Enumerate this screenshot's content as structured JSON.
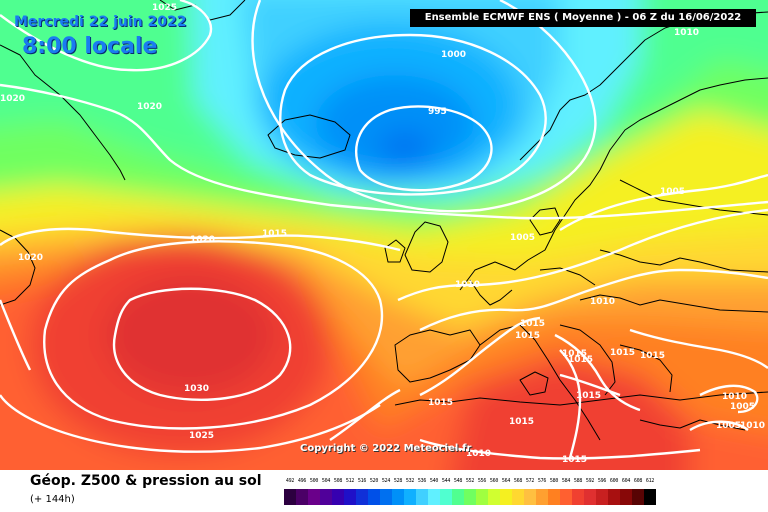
{
  "header": {
    "date": "Mercredi 22 juin 2022",
    "time": "8:00 locale",
    "model": "Ensemble ECMWF ENS  ( Moyenne )  -  06 Z du 16/06/2022"
  },
  "copyright": "Copyright © 2022 Meteociel.fr",
  "footer": {
    "title": "Géop. Z500 & pression au sol",
    "subtitle": "(+ 144h)"
  },
  "legend": {
    "values": [
      "492",
      "496",
      "500",
      "504",
      "508",
      "512",
      "516",
      "520",
      "524",
      "528",
      "532",
      "536",
      "540",
      "544",
      "548",
      "552",
      "556",
      "560",
      "564",
      "568",
      "572",
      "576",
      "580",
      "584",
      "588",
      "592",
      "596",
      "600",
      "604",
      "608",
      "612"
    ],
    "colors": [
      "#2c0040",
      "#4b0067",
      "#6a008a",
      "#50009a",
      "#3600b0",
      "#1f10c8",
      "#1030d8",
      "#0050e8",
      "#0070f0",
      "#0090f8",
      "#10b0ff",
      "#40d0ff",
      "#60f0ff",
      "#50ffd0",
      "#50ff90",
      "#70ff60",
      "#a0ff40",
      "#d0ff30",
      "#f5f020",
      "#ffd830",
      "#ffc040",
      "#ffa030",
      "#ff8020",
      "#ff6030",
      "#f04030",
      "#e03030",
      "#c82020",
      "#a81010",
      "#880808",
      "#580404",
      "#000000"
    ]
  },
  "isobars": [
    {
      "label": "1025"
    },
    {
      "label": "1020"
    },
    {
      "label": "1020"
    },
    {
      "label": "1000"
    },
    {
      "label": "995"
    },
    {
      "label": "1010"
    },
    {
      "label": "1005"
    },
    {
      "label": "1020"
    },
    {
      "label": "1015"
    },
    {
      "label": "1020"
    },
    {
      "label": "1005"
    },
    {
      "label": "1010"
    },
    {
      "label": "1010"
    },
    {
      "label": "1015"
    },
    {
      "label": "1015"
    },
    {
      "label": "1015"
    },
    {
      "label": "1015"
    },
    {
      "label": "1015"
    },
    {
      "label": "1015"
    },
    {
      "label": "1030"
    },
    {
      "label": "1025"
    },
    {
      "label": "1015"
    },
    {
      "label": "1015"
    },
    {
      "label": "1015"
    },
    {
      "label": "1015"
    },
    {
      "label": "1010"
    },
    {
      "label": "1005"
    },
    {
      "label": "1010"
    },
    {
      "label": "1005"
    },
    {
      "label": "1010"
    }
  ]
}
